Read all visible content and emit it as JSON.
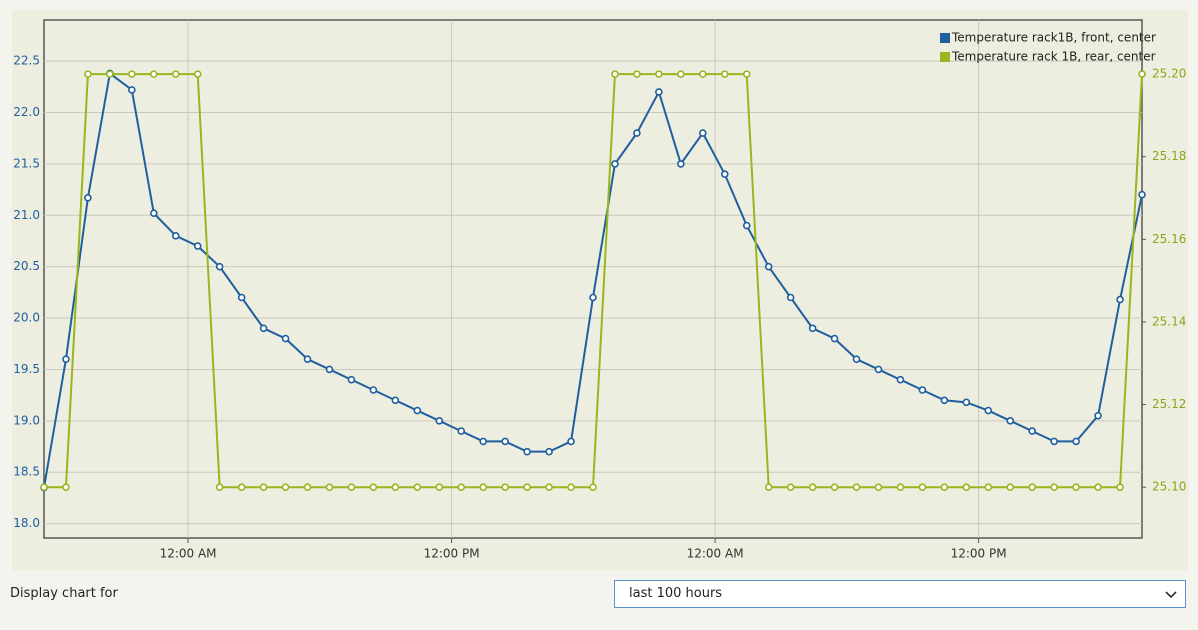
{
  "chart_data": {
    "type": "line",
    "x": [
      0,
      1,
      2,
      3,
      4,
      5,
      6,
      7,
      8,
      9,
      10,
      11,
      12,
      13,
      14,
      15,
      16,
      17,
      18,
      19,
      20,
      21,
      22,
      23,
      24,
      25,
      26,
      27,
      28,
      29,
      30,
      31,
      32,
      33,
      34,
      35,
      36,
      37,
      38,
      39,
      40,
      41,
      42,
      43,
      44,
      45,
      46,
      47,
      48,
      49,
      50
    ],
    "xlim": [
      0,
      50
    ],
    "xticks": [
      {
        "value": 6.56,
        "label": "12:00 AM"
      },
      {
        "value": 18.56,
        "label": "12:00 PM"
      },
      {
        "value": 30.56,
        "label": "12:00 AM"
      },
      {
        "value": 42.56,
        "label": "12:00 PM"
      }
    ],
    "ylim": [
      17.86,
      22.9
    ],
    "yticks": [
      {
        "value": 18.0,
        "label": "18.0"
      },
      18.5,
      {
        "value": 19.0,
        "label": "19.0"
      },
      19.5,
      {
        "value": 20.0,
        "label": "20.0"
      },
      20.5,
      {
        "value": 21.0,
        "label": "21.0"
      },
      21.5,
      {
        "value": 22.0,
        "label": "22.0"
      },
      22.5
    ],
    "y2lim": [
      25.0877,
      25.2131
    ],
    "y2ticks": [
      {
        "value": 25.1,
        "label": "25.10"
      },
      {
        "value": 25.12,
        "label": "25.12"
      },
      {
        "value": 25.14,
        "label": "25.14"
      },
      {
        "value": 25.16,
        "label": "25.16"
      },
      {
        "value": 25.18,
        "label": "25.18"
      },
      {
        "value": 25.2,
        "label": "25.20"
      }
    ],
    "grid": true,
    "legend": "top-right",
    "series": [
      {
        "name": "Temperature rack1B, front, center",
        "color": "#1f5fa0",
        "values": [
          18.35,
          19.6,
          21.17,
          22.38,
          22.22,
          21.02,
          20.8,
          20.7,
          20.5,
          20.2,
          19.9,
          19.8,
          19.6,
          19.5,
          19.4,
          19.3,
          19.2,
          19.1,
          19.0,
          18.9,
          18.8,
          18.8,
          18.7,
          18.7,
          18.8,
          20.2,
          21.5,
          21.8,
          22.2,
          21.5,
          21.8,
          21.4,
          20.9,
          20.5,
          20.2,
          19.9,
          19.8,
          19.6,
          19.5,
          19.4,
          19.3,
          19.2,
          19.18,
          19.1,
          19.0,
          18.9,
          18.8,
          18.8,
          19.05,
          20.18,
          21.2
        ]
      },
      {
        "name": "Temperature rack 1B, rear, center",
        "color": "#9ab51e",
        "axis": "y2",
        "values": [
          25.1,
          25.1,
          25.2,
          25.2,
          25.2,
          25.2,
          25.2,
          25.2,
          25.1,
          25.1,
          25.1,
          25.1,
          25.1,
          25.1,
          25.1,
          25.1,
          25.1,
          25.1,
          25.1,
          25.1,
          25.1,
          25.1,
          25.1,
          25.1,
          25.1,
          25.1,
          25.2,
          25.2,
          25.2,
          25.2,
          25.2,
          25.2,
          25.2,
          25.1,
          25.1,
          25.1,
          25.1,
          25.1,
          25.1,
          25.1,
          25.1,
          25.1,
          25.1,
          25.1,
          25.1,
          25.1,
          25.1,
          25.1,
          25.1,
          25.1,
          25.2
        ]
      }
    ]
  },
  "controls": {
    "label": "Display chart for",
    "select_value": "last 100 hours"
  }
}
